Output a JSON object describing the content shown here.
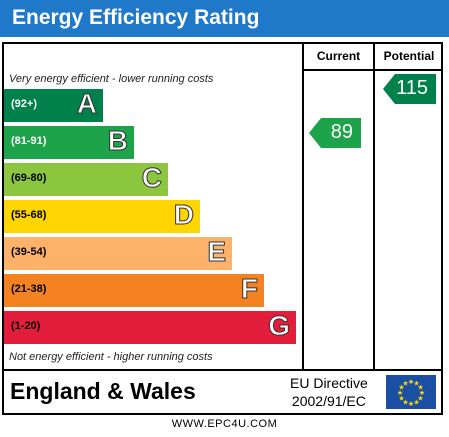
{
  "title": "Energy Efficiency Rating",
  "columns": {
    "current": "Current",
    "potential": "Potential"
  },
  "top_note": "Very energy efficient - lower running costs",
  "bottom_note": "Not energy efficient - higher running costs",
  "bands": [
    {
      "range": "(92+)",
      "letter": "A",
      "color": "#00804a",
      "range_color": "#ffffff"
    },
    {
      "range": "(81-91)",
      "letter": "B",
      "color": "#1da34a",
      "range_color": "#ffffff"
    },
    {
      "range": "(69-80)",
      "letter": "C",
      "color": "#8cc63f",
      "range_color": "#000000"
    },
    {
      "range": "(55-68)",
      "letter": "D",
      "color": "#ffd500",
      "range_color": "#000000"
    },
    {
      "range": "(39-54)",
      "letter": "E",
      "color": "#fcb26a",
      "range_color": "#000000"
    },
    {
      "range": "(21-38)",
      "letter": "F",
      "color": "#f58220",
      "range_color": "#000000"
    },
    {
      "range": "(1-20)",
      "letter": "G",
      "color": "#e31d3c",
      "range_color": "#000000"
    }
  ],
  "ratings": {
    "current": {
      "value": "89",
      "band": "B",
      "color": "#1da34a"
    },
    "potential": {
      "value": "115",
      "band": "A",
      "color": "#00804a"
    }
  },
  "country": "England & Wales",
  "directive": {
    "line1": "EU Directive",
    "line2": "2002/91/EC"
  },
  "flag_icon": "eu-flag-icon",
  "footer": "WWW.EPC4U.COM"
}
